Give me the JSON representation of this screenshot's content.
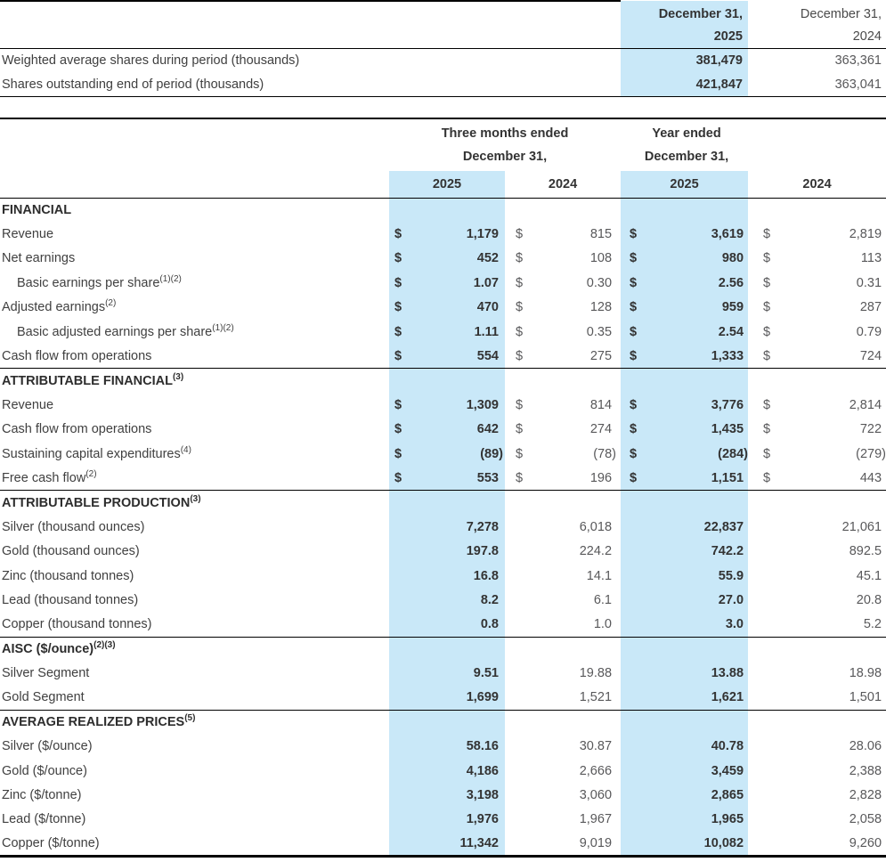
{
  "colors": {
    "highlight": "#C9E8F8",
    "rule": "#000000",
    "bold_text": "#333333",
    "regular_text": "#58585A"
  },
  "shares_table": {
    "col_2025": {
      "line1": "December 31,",
      "line2": "2025"
    },
    "col_2024": {
      "line1": "December 31,",
      "line2": "2024"
    },
    "rows": [
      {
        "label": "Weighted average shares during period (thousands)",
        "v2025": "381,479",
        "v2024": "363,361"
      },
      {
        "label": "Shares outstanding end of period (thousands)",
        "v2025": "421,847",
        "v2024": "363,041"
      }
    ]
  },
  "main_table": {
    "group_quarter": {
      "line1": "Three months ended",
      "line2": "December 31,"
    },
    "group_year": {
      "line1": "Year ended",
      "line2": "December 31,"
    },
    "year_headers": [
      "2025",
      "2024",
      "2025",
      "2024"
    ],
    "sections": [
      {
        "header": "FINANCIAL",
        "sup": "",
        "dollar": true,
        "rows": [
          {
            "label": "Revenue",
            "sup": "",
            "indent": false,
            "values": [
              "1,179",
              "815",
              "3,619",
              "2,819"
            ]
          },
          {
            "label": "Net earnings",
            "sup": "",
            "indent": false,
            "values": [
              "452",
              "108",
              "980",
              "113"
            ]
          },
          {
            "label": "Basic earnings per share",
            "sup": "(1)(2)",
            "indent": true,
            "values": [
              "1.07",
              "0.30",
              "2.56",
              "0.31"
            ]
          },
          {
            "label": "Adjusted earnings",
            "sup": "(2)",
            "indent": false,
            "values": [
              "470",
              "128",
              "959",
              "287"
            ]
          },
          {
            "label": "Basic adjusted earnings per share",
            "sup": "(1)(2)",
            "indent": true,
            "values": [
              "1.11",
              "0.35",
              "2.54",
              "0.79"
            ]
          },
          {
            "label": "Cash flow from operations",
            "sup": "",
            "indent": false,
            "values": [
              "554",
              "275",
              "1,333",
              "724"
            ]
          }
        ]
      },
      {
        "header": "ATTRIBUTABLE FINANCIAL",
        "sup": "(3)",
        "dollar": true,
        "rows": [
          {
            "label": "Revenue",
            "sup": "",
            "indent": false,
            "values": [
              "1,309",
              "814",
              "3,776",
              "2,814"
            ]
          },
          {
            "label": "Cash flow from operations",
            "sup": "",
            "indent": false,
            "values": [
              "642",
              "274",
              "1,435",
              "722"
            ]
          },
          {
            "label": "Sustaining capital expenditures",
            "sup": "(4)",
            "indent": false,
            "values": [
              "(89)",
              "(78)",
              "(284)",
              "(279)"
            ]
          },
          {
            "label": "Free cash flow",
            "sup": "(2)",
            "indent": false,
            "values": [
              "553",
              "196",
              "1,151",
              "443"
            ]
          }
        ]
      },
      {
        "header": "ATTRIBUTABLE PRODUCTION",
        "sup": "(3)",
        "dollar": false,
        "rows": [
          {
            "label": "Silver (thousand ounces)",
            "sup": "",
            "indent": false,
            "values": [
              "7,278",
              "6,018",
              "22,837",
              "21,061"
            ]
          },
          {
            "label": "Gold (thousand ounces)",
            "sup": "",
            "indent": false,
            "values": [
              "197.8",
              "224.2",
              "742.2",
              "892.5"
            ]
          },
          {
            "label": "Zinc (thousand tonnes)",
            "sup": "",
            "indent": false,
            "values": [
              "16.8",
              "14.1",
              "55.9",
              "45.1"
            ]
          },
          {
            "label": "Lead (thousand tonnes)",
            "sup": "",
            "indent": false,
            "values": [
              "8.2",
              "6.1",
              "27.0",
              "20.8"
            ]
          },
          {
            "label": "Copper (thousand tonnes)",
            "sup": "",
            "indent": false,
            "values": [
              "0.8",
              "1.0",
              "3.0",
              "5.2"
            ]
          }
        ]
      },
      {
        "header": "AISC ($/ounce)",
        "sup": "(2)(3)",
        "dollar": false,
        "rows": [
          {
            "label": "Silver Segment",
            "sup": "",
            "indent": false,
            "values": [
              "9.51",
              "19.88",
              "13.88",
              "18.98"
            ]
          },
          {
            "label": "Gold Segment",
            "sup": "",
            "indent": false,
            "values": [
              "1,699",
              "1,521",
              "1,621",
              "1,501"
            ]
          }
        ]
      },
      {
        "header": "AVERAGE REALIZED PRICES",
        "sup": "(5)",
        "dollar": false,
        "rows": [
          {
            "label": "Silver ($/ounce)",
            "sup": "",
            "indent": false,
            "values": [
              "58.16",
              "30.87",
              "40.78",
              "28.06"
            ]
          },
          {
            "label": "Gold ($/ounce)",
            "sup": "",
            "indent": false,
            "values": [
              "4,186",
              "2,666",
              "3,459",
              "2,388"
            ]
          },
          {
            "label": "Zinc ($/tonne)",
            "sup": "",
            "indent": false,
            "values": [
              "3,198",
              "3,060",
              "2,865",
              "2,828"
            ]
          },
          {
            "label": "Lead ($/tonne)",
            "sup": "",
            "indent": false,
            "values": [
              "1,976",
              "1,967",
              "1,965",
              "2,058"
            ]
          },
          {
            "label": "Copper ($/tonne)",
            "sup": "",
            "indent": false,
            "values": [
              "11,342",
              "9,019",
              "10,082",
              "9,260"
            ]
          }
        ]
      }
    ]
  }
}
